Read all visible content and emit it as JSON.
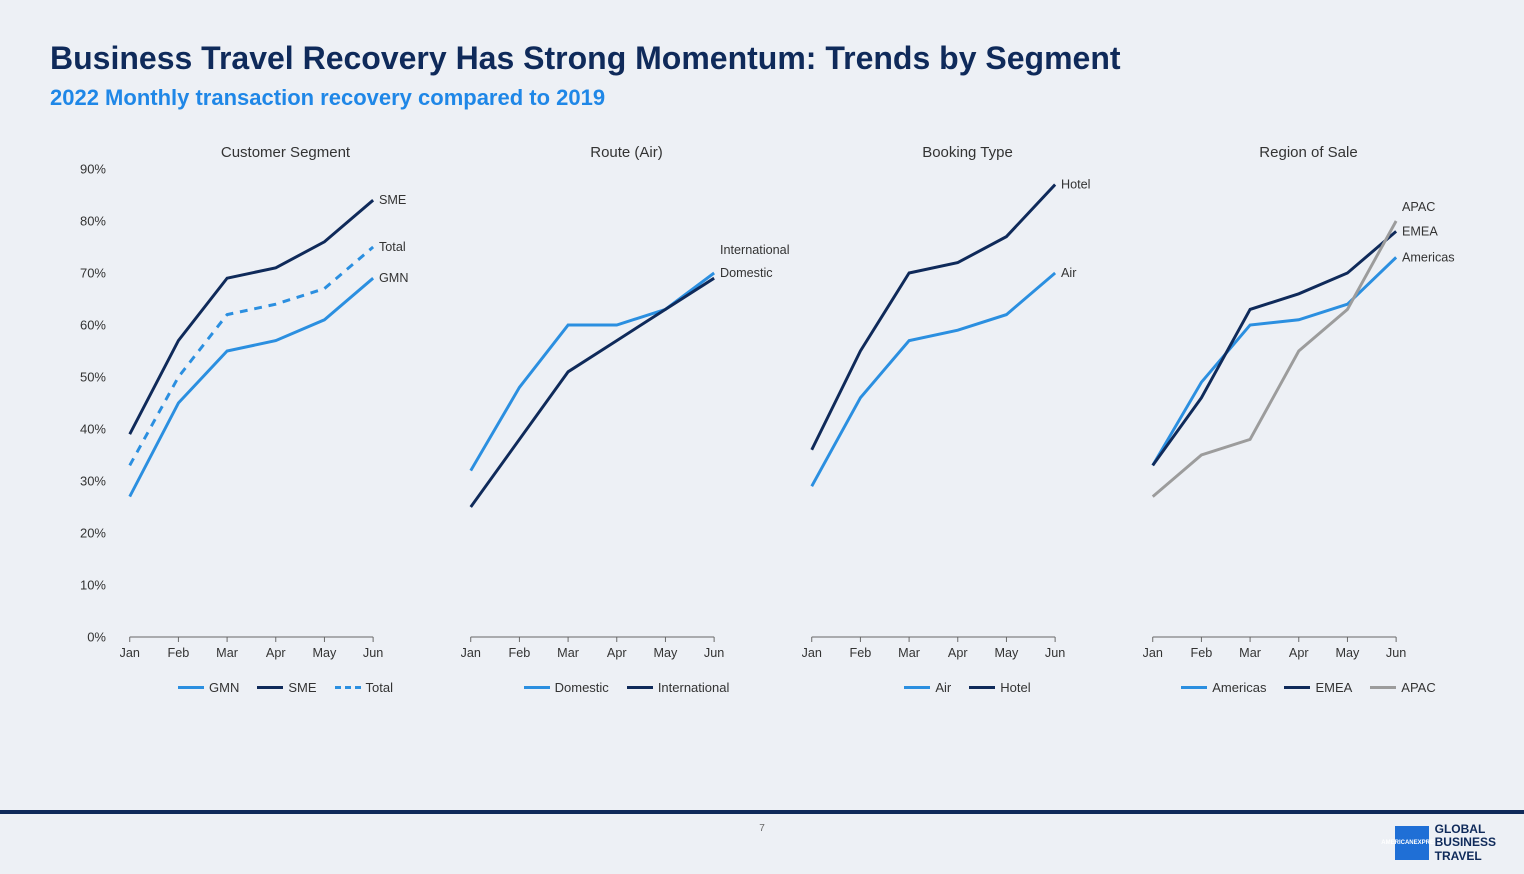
{
  "title": "Business Travel Recovery Has Strong Momentum: Trends by Segment",
  "subtitle": "2022 Monthly transaction recovery compared to 2019",
  "page_number": "7",
  "logo": {
    "box_text": "AMERICAN\nEXPRESS",
    "side_text": "GLOBAL\nBUSINESS\nTRAVEL"
  },
  "y_axis": {
    "min": 0,
    "max": 90,
    "tick_step": 10,
    "tick_labels": [
      "0%",
      "10%",
      "20%",
      "30%",
      "40%",
      "50%",
      "60%",
      "70%",
      "80%",
      "90%"
    ]
  },
  "x_categories": [
    "Jan",
    "Feb",
    "Mar",
    "Apr",
    "May",
    "Jun"
  ],
  "colors": {
    "blue_light": "#2b8fe0",
    "blue_dark": "#0f2a5a",
    "grey": "#9c9c9c",
    "axis": "#666666",
    "grid": "#c6c6c6",
    "title": "#0f2a5a",
    "subtitle": "#1f87e7",
    "bg": "#edf0f5"
  },
  "line_width": 3,
  "charts": [
    {
      "title": "Customer Segment",
      "series": [
        {
          "name": "GMN",
          "color": "#2b8fe0",
          "dash": "solid",
          "values": [
            27,
            45,
            55,
            57,
            61,
            69
          ],
          "end_label": "GMN"
        },
        {
          "name": "SME",
          "color": "#0f2a5a",
          "dash": "solid",
          "values": [
            39,
            57,
            69,
            71,
            76,
            84
          ],
          "end_label": "SME"
        },
        {
          "name": "Total",
          "color": "#2b8fe0",
          "dash": "dashed",
          "values": [
            33,
            50,
            62,
            64,
            67,
            75
          ],
          "end_label": "Total"
        }
      ],
      "legend": [
        {
          "label": "GMN",
          "color": "#2b8fe0",
          "dash": "solid"
        },
        {
          "label": "SME",
          "color": "#0f2a5a",
          "dash": "solid"
        },
        {
          "label": "Total",
          "color": "#2b8fe0",
          "dash": "dashed"
        }
      ]
    },
    {
      "title": "Route (Air)",
      "series": [
        {
          "name": "Domestic",
          "color": "#2b8fe0",
          "dash": "solid",
          "values": [
            32,
            48,
            60,
            60,
            63,
            70
          ],
          "end_label": "Domestic"
        },
        {
          "name": "International",
          "color": "#0f2a5a",
          "dash": "solid",
          "values": [
            25,
            38,
            51,
            57,
            63,
            69
          ],
          "end_label": "International"
        }
      ],
      "legend": [
        {
          "label": "Domestic",
          "color": "#2b8fe0",
          "dash": "solid"
        },
        {
          "label": "International",
          "color": "#0f2a5a",
          "dash": "solid"
        }
      ]
    },
    {
      "title": "Booking Type",
      "series": [
        {
          "name": "Air",
          "color": "#2b8fe0",
          "dash": "solid",
          "values": [
            29,
            46,
            57,
            59,
            62,
            70
          ],
          "end_label": "Air"
        },
        {
          "name": "Hotel",
          "color": "#0f2a5a",
          "dash": "solid",
          "values": [
            36,
            55,
            70,
            72,
            77,
            87
          ],
          "end_label": "Hotel"
        }
      ],
      "legend": [
        {
          "label": "Air",
          "color": "#2b8fe0",
          "dash": "solid"
        },
        {
          "label": "Hotel",
          "color": "#0f2a5a",
          "dash": "solid"
        }
      ]
    },
    {
      "title": "Region of Sale",
      "series": [
        {
          "name": "Americas",
          "color": "#2b8fe0",
          "dash": "solid",
          "values": [
            33,
            49,
            60,
            61,
            64,
            73
          ],
          "end_label": "Americas"
        },
        {
          "name": "EMEA",
          "color": "#0f2a5a",
          "dash": "solid",
          "values": [
            33,
            46,
            63,
            66,
            70,
            78
          ],
          "end_label": "EMEA"
        },
        {
          "name": "APAC",
          "color": "#9c9c9c",
          "dash": "solid",
          "values": [
            27,
            35,
            38,
            55,
            63,
            80
          ],
          "end_label": "APAC"
        }
      ],
      "legend": [
        {
          "label": "Americas",
          "color": "#2b8fe0",
          "dash": "solid"
        },
        {
          "label": "EMEA",
          "color": "#0f2a5a",
          "dash": "solid"
        },
        {
          "label": "APAC",
          "color": "#9c9c9c",
          "dash": "solid"
        }
      ]
    }
  ]
}
